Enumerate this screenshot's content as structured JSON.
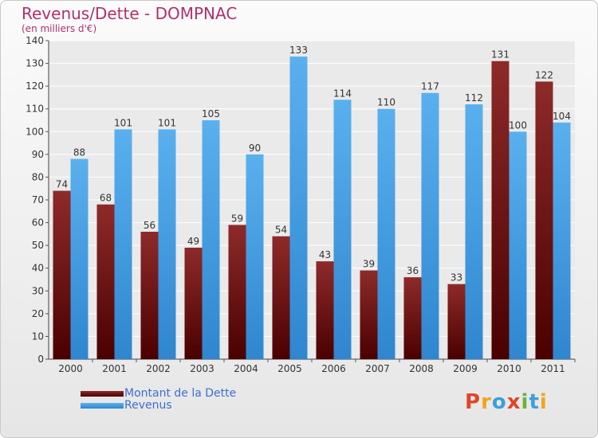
{
  "title": "Revenus/Dette - DOMPNAC",
  "subtitle": "(en milliers d'€)",
  "logo": "Proxiti",
  "colors": {
    "dette": "#7a1515",
    "revenus": "#4aa3e6",
    "title": "#b0306a",
    "legend_text": "#3b6fd0"
  },
  "chart_data": {
    "type": "bar",
    "categories": [
      "2000",
      "2001",
      "2002",
      "2003",
      "2004",
      "2005",
      "2006",
      "2007",
      "2008",
      "2009",
      "2010",
      "2011"
    ],
    "series": [
      {
        "name": "Montant de la Dette",
        "values": [
          74,
          68,
          56,
          49,
          59,
          54,
          43,
          39,
          36,
          33,
          131,
          122
        ]
      },
      {
        "name": "Revenus",
        "values": [
          88,
          101,
          101,
          105,
          90,
          133,
          114,
          110,
          117,
          112,
          100,
          104
        ]
      }
    ],
    "ylim": [
      0,
      140
    ],
    "yticks": [
      0,
      10,
      20,
      30,
      40,
      50,
      60,
      70,
      80,
      90,
      100,
      110,
      120,
      130,
      140
    ],
    "grid": true,
    "legend_position": "bottom-left"
  }
}
